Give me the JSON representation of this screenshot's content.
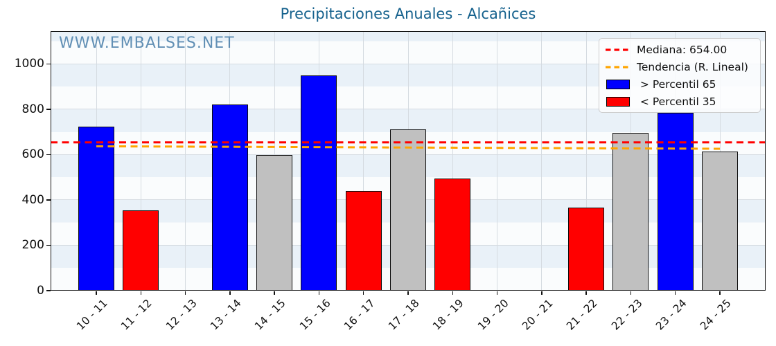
{
  "title": "Precipitaciones Anuales - Alcañices",
  "watermark": "WWW.EMBALSES.NET",
  "legend": {
    "position": "upper right",
    "items": [
      {
        "swatch": "dashed-line",
        "color_key": "median",
        "label": "Mediana: 654.00"
      },
      {
        "swatch": "dashed-line",
        "color_key": "trend",
        "label": "Tendencia (R. Lineal)"
      },
      {
        "swatch": "rect",
        "color_key": "blue",
        "label": " > Percentil 65"
      },
      {
        "swatch": "rect",
        "color_key": "red",
        "label": " < Percentil 35"
      }
    ]
  },
  "colors": {
    "blue": "#0000ff",
    "red": "#ff0000",
    "gray": "#c0c0c0",
    "median": "#ff0000",
    "trend": "#ffa500",
    "title": "#15618d",
    "watermark": "rgba(70,125,168,0.85)"
  },
  "chart_data": {
    "type": "bar",
    "title": "Precipitaciones Anuales - Alcañices",
    "xlabel": "",
    "ylabel": "",
    "categories": [
      "10 - 11",
      "11 - 12",
      "12 - 13",
      "13 - 14",
      "14 - 15",
      "15 - 16",
      "16 - 17",
      "17 - 18",
      "18 - 19",
      "19 - 20",
      "20 - 21",
      "21 - 22",
      "22 - 23",
      "23 - 24",
      "24 - 25"
    ],
    "values": [
      725,
      355,
      null,
      820,
      600,
      950,
      440,
      710,
      495,
      null,
      null,
      365,
      695,
      785,
      615
    ],
    "bar_colors": [
      "blue",
      "red",
      null,
      "blue",
      "gray",
      "blue",
      "red",
      "gray",
      "red",
      null,
      null,
      "red",
      "gray",
      "blue",
      "gray"
    ],
    "median": 654,
    "median_label": "Mediana: 654.00",
    "trend_line": {
      "start_value": 637,
      "end_value": 626,
      "label": "Tendencia (R. Lineal)"
    },
    "yticks": [
      0,
      200,
      400,
      600,
      800,
      1000
    ],
    "ylim": [
      0,
      1145
    ],
    "grid": true,
    "legend_position": "upper right",
    "series_rule": {
      "blue": "> Percentil 65",
      "red": "< Percentil 35",
      "gray": "entre percentiles"
    }
  }
}
